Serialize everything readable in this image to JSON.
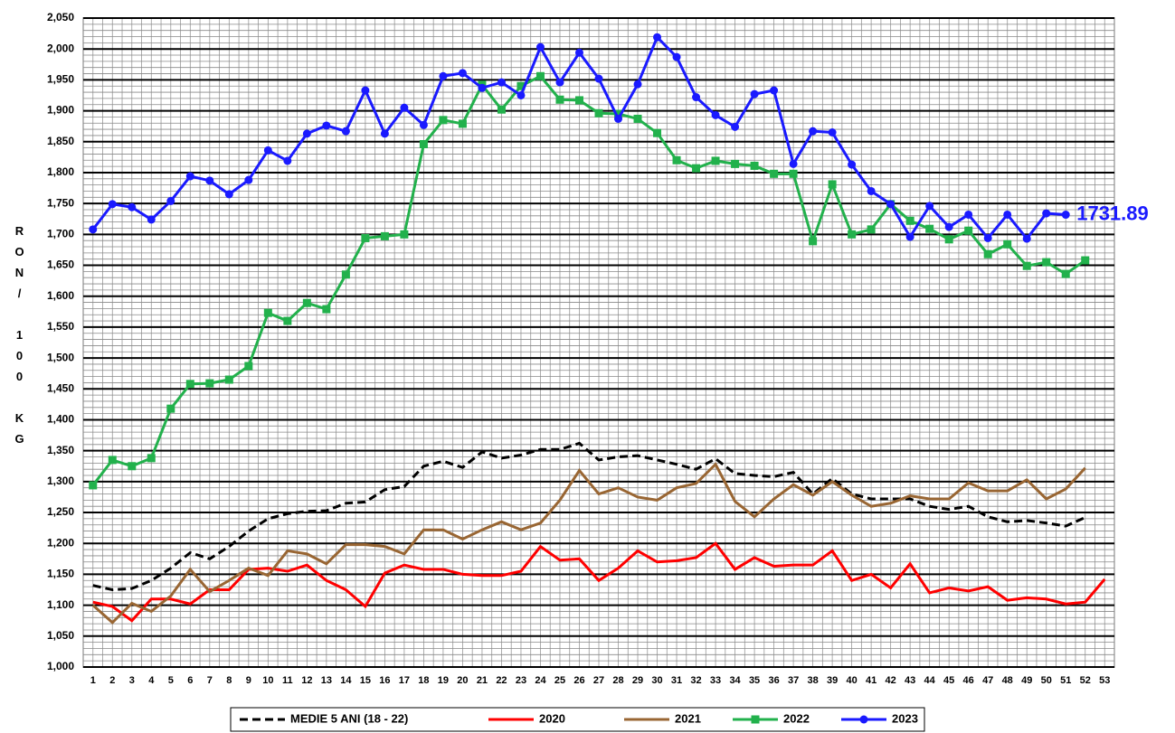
{
  "chart_data": {
    "type": "line",
    "y_label": "RON/ 100 KG",
    "categories": [
      "1",
      "2",
      "3",
      "4",
      "5",
      "6",
      "7",
      "8",
      "9",
      "10",
      "11",
      "12",
      "13",
      "14",
      "15",
      "16",
      "17",
      "18",
      "19",
      "20",
      "21",
      "22",
      "23",
      "24",
      "25",
      "26",
      "27",
      "28",
      "29",
      "30",
      "31",
      "32",
      "33",
      "34",
      "35",
      "36",
      "37",
      "38",
      "39",
      "40",
      "41",
      "42",
      "43",
      "44",
      "45",
      "46",
      "47",
      "48",
      "49",
      "50",
      "51",
      "52",
      "53"
    ],
    "ylim": [
      1000,
      2050
    ],
    "yticks": [
      {
        "value": 1000,
        "label": "1,000"
      },
      {
        "value": 1050,
        "label": "1,050"
      },
      {
        "value": 1100,
        "label": "1,100"
      },
      {
        "value": 1150,
        "label": "1,150"
      },
      {
        "value": 1200,
        "label": "1,200"
      },
      {
        "value": 1250,
        "label": "1,250"
      },
      {
        "value": 1300,
        "label": "1,300"
      },
      {
        "value": 1350,
        "label": "1,350"
      },
      {
        "value": 1400,
        "label": "1,400"
      },
      {
        "value": 1450,
        "label": "1,450"
      },
      {
        "value": 1500,
        "label": "1,500"
      },
      {
        "value": 1550,
        "label": "1,550"
      },
      {
        "value": 1600,
        "label": "1,600"
      },
      {
        "value": 1650,
        "label": "1,650"
      },
      {
        "value": 1700,
        "label": "1,700"
      },
      {
        "value": 1750,
        "label": "1,750"
      },
      {
        "value": 1800,
        "label": "1,800"
      },
      {
        "value": 1850,
        "label": "1,850"
      },
      {
        "value": 1900,
        "label": "1,900"
      },
      {
        "value": 1950,
        "label": "1,950"
      },
      {
        "value": 2000,
        "label": "2,000"
      },
      {
        "value": 2050,
        "label": "2,050"
      }
    ],
    "grid": true,
    "legend": "bottom",
    "series": [
      {
        "name": "MEDIE 5 ANI (18 - 22)",
        "color": "#000000",
        "dash": true,
        "values": [
          1132,
          1125,
          1127,
          1140,
          1160,
          1185,
          1175,
          1195,
          1220,
          1240,
          1248,
          1252,
          1253,
          1265,
          1267,
          1287,
          1292,
          1325,
          1333,
          1323,
          1348,
          1338,
          1343,
          1352,
          1352,
          1362,
          1335,
          1340,
          1342,
          1335,
          1328,
          1320,
          1337,
          1313,
          1310,
          1308,
          1315,
          1280,
          1305,
          1280,
          1272,
          1272,
          1272,
          1260,
          1255,
          1260,
          1243,
          1235,
          1237,
          1233,
          1228,
          1242,
          null
        ]
      },
      {
        "name": "2020",
        "color": "#ff0000",
        "values": [
          1105,
          1098,
          1075,
          1110,
          1110,
          1102,
          1125,
          1125,
          1158,
          1160,
          1155,
          1165,
          1140,
          1125,
          1098,
          1152,
          1165,
          1158,
          1158,
          1150,
          1148,
          1148,
          1155,
          1195,
          1173,
          1175,
          1140,
          1160,
          1188,
          1170,
          1172,
          1177,
          1200,
          1158,
          1177,
          1163,
          1165,
          1165,
          1188,
          1140,
          1150,
          1128,
          1167,
          1120,
          1128,
          1123,
          1130,
          1108,
          1112,
          1110,
          1102,
          1105,
          1142
        ]
      },
      {
        "name": "2021",
        "color": "#996633",
        "values": [
          1100,
          1072,
          1103,
          1090,
          1115,
          1158,
          1122,
          1140,
          1160,
          1148,
          1188,
          1183,
          1167,
          1198,
          1198,
          1195,
          1183,
          1222,
          1222,
          1207,
          1222,
          1235,
          1222,
          1233,
          1270,
          1318,
          1280,
          1290,
          1275,
          1270,
          1290,
          1297,
          1328,
          1268,
          1243,
          1272,
          1295,
          1278,
          1300,
          1278,
          1260,
          1265,
          1277,
          1272,
          1272,
          1298,
          1285,
          1285,
          1303,
          1272,
          1288,
          1322,
          null
        ]
      },
      {
        "name": "2022",
        "color": "#22b14c",
        "marker": "square",
        "values": [
          1294,
          1335,
          1325,
          1338,
          1418,
          1458,
          1459,
          1465,
          1487,
          1573,
          1560,
          1589,
          1579,
          1635,
          1694,
          1697,
          1700,
          1846,
          1885,
          1879,
          1942,
          1902,
          1940,
          1956,
          1918,
          1917,
          1896,
          1895,
          1887,
          1864,
          1820,
          1807,
          1819,
          1814,
          1811,
          1798,
          1798,
          1689,
          1781,
          1700,
          1708,
          1749,
          1722,
          1709,
          1692,
          1706,
          1668,
          1684,
          1649,
          1655,
          1636,
          1658,
          null
        ]
      },
      {
        "name": "2023",
        "color": "#1a1aff",
        "marker": "circle",
        "values": [
          1708,
          1749,
          1744,
          1724,
          1754,
          1794,
          1787,
          1765,
          1788,
          1836,
          1819,
          1863,
          1876,
          1867,
          1933,
          1863,
          1905,
          1877,
          1956,
          1961,
          1937,
          1946,
          1925,
          2003,
          1946,
          1994,
          1952,
          1887,
          1943,
          2019,
          1987,
          1922,
          1893,
          1874,
          1927,
          1933,
          1814,
          1867,
          1865,
          1813,
          1770,
          1749,
          1696,
          1746,
          1712,
          1732,
          1694,
          1732,
          1693,
          1734,
          1731.89,
          null,
          null
        ]
      }
    ]
  }
}
